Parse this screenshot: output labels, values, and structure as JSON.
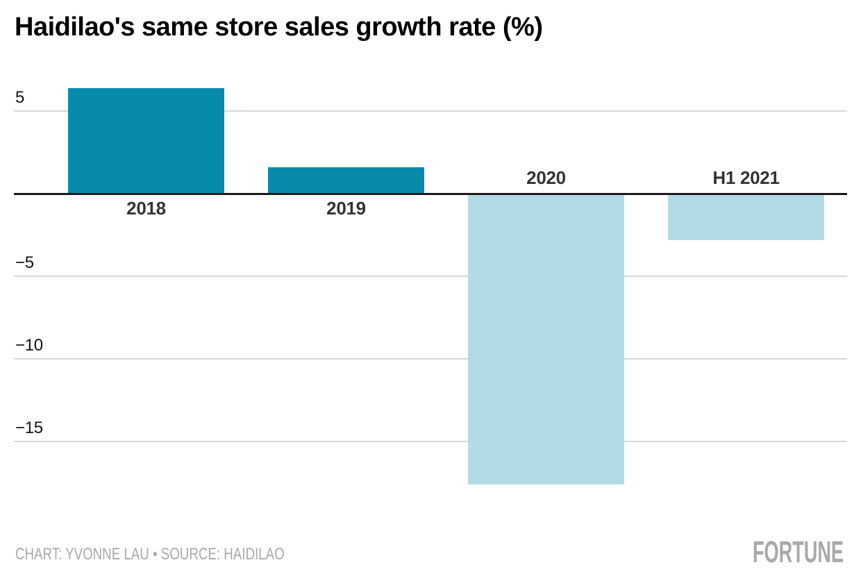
{
  "header": {
    "title": "Haidilao's same store sales growth rate (%)"
  },
  "footer": {
    "credit": "CHART: YVONNE LAU • SOURCE: HAIDILAO",
    "brand": "FORTUNE"
  },
  "chart_data": {
    "type": "bar",
    "title": "Haidilao's same store sales growth rate (%)",
    "categories": [
      "2018",
      "2019",
      "2020",
      "H1 2021"
    ],
    "values": [
      6.4,
      1.6,
      -17.6,
      -2.8
    ],
    "xlabel": "",
    "ylabel": "",
    "yticks": [
      5,
      -5,
      -10,
      -15
    ],
    "ytick_labels": [
      "5",
      "−5",
      "−10",
      "−15"
    ],
    "ylim": [
      -18,
      7
    ],
    "grid": true,
    "legend_position": "none",
    "colors": {
      "positive_bar": "#088aab",
      "negative_bar": "#b2dbe5",
      "gridline": "#d6d6d6",
      "zero_axis": "#1b1b1b"
    }
  }
}
